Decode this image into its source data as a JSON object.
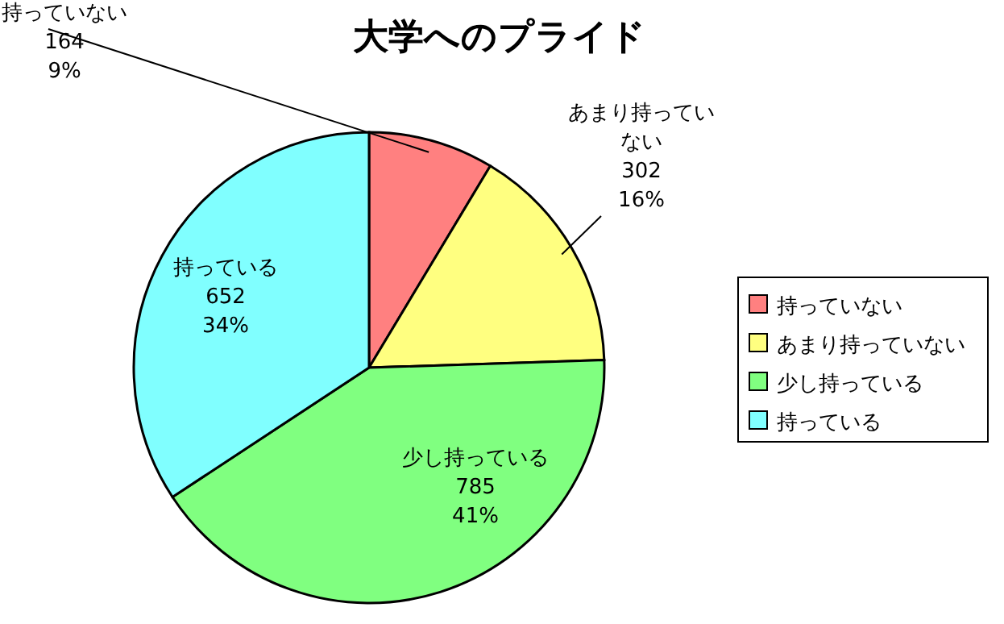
{
  "chart_data": {
    "type": "pie",
    "title": "大学へのプライド",
    "categories": [
      "持っていない",
      "あまり持っていない",
      "少し持っている",
      "持っている"
    ],
    "values": [
      164,
      302,
      785,
      652
    ],
    "colors": [
      "#ff8080",
      "#ffff80",
      "#80ff80",
      "#80ffff"
    ],
    "value_labels": [
      "164\n9%",
      "302\n16%",
      "785\n41%",
      "652\n34%"
    ],
    "legend": "right"
  }
}
